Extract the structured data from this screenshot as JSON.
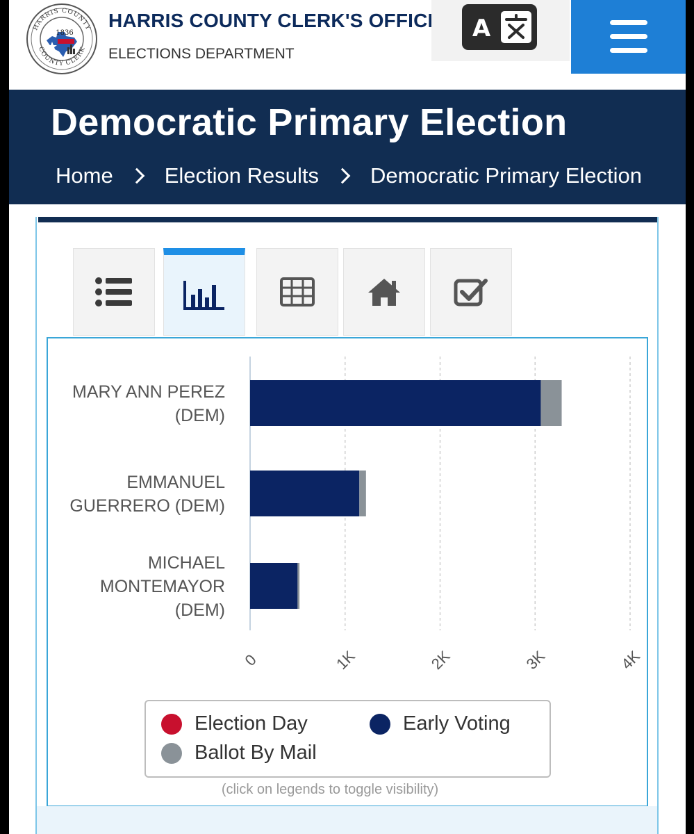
{
  "header": {
    "org_title": "HARRIS COUNTY CLERK'S OFFICE",
    "org_subtitle": "ELECTIONS DEPARTMENT",
    "seal": {
      "top_text": "HARRIS COUNTY",
      "bottom_text": "COUNTY CLERK",
      "year": "1836"
    },
    "translate_icon": "translate-icon",
    "menu_icon": "hamburger-menu-icon"
  },
  "banner": {
    "title": "Democratic Primary Election",
    "breadcrumbs": [
      "Home",
      "Election Results",
      "Democratic Primary Election"
    ]
  },
  "tabs": [
    {
      "icon": "list-icon",
      "active": false
    },
    {
      "icon": "bar-chart-icon",
      "active": true
    },
    {
      "icon": "table-icon",
      "active": false
    },
    {
      "icon": "home-icon",
      "active": false
    },
    {
      "icon": "checkbox-icon",
      "active": false
    }
  ],
  "colors": {
    "navy": "#112d52",
    "accent_blue": "#1e7fd6",
    "election_day": "#c8102e",
    "early_voting": "#0b2463",
    "ballot_by_mail": "#8a9298"
  },
  "chart_data": {
    "type": "bar",
    "orientation": "horizontal",
    "stacked": true,
    "categories": [
      [
        "MARY ANN PEREZ",
        "(DEM)"
      ],
      [
        "EMMANUEL",
        "GUERRERO (DEM)"
      ],
      [
        "MICHAEL",
        "MONTEMAYOR",
        "(DEM)"
      ]
    ],
    "series": [
      {
        "name": "Election Day",
        "values": [
          0,
          0,
          0
        ]
      },
      {
        "name": "Early Voting",
        "values": [
          3060,
          1150,
          500
        ]
      },
      {
        "name": "Ballot By Mail",
        "values": [
          220,
          70,
          20
        ]
      }
    ],
    "xlim": [
      0,
      4000
    ],
    "x_ticks": [
      0,
      1000,
      2000,
      3000,
      4000
    ],
    "x_tick_labels": [
      "0",
      "1K",
      "2K",
      "3K",
      "4K"
    ],
    "grid": true,
    "legend_position": "bottom",
    "legend_hint": "(click on legends to toggle visibility)"
  }
}
